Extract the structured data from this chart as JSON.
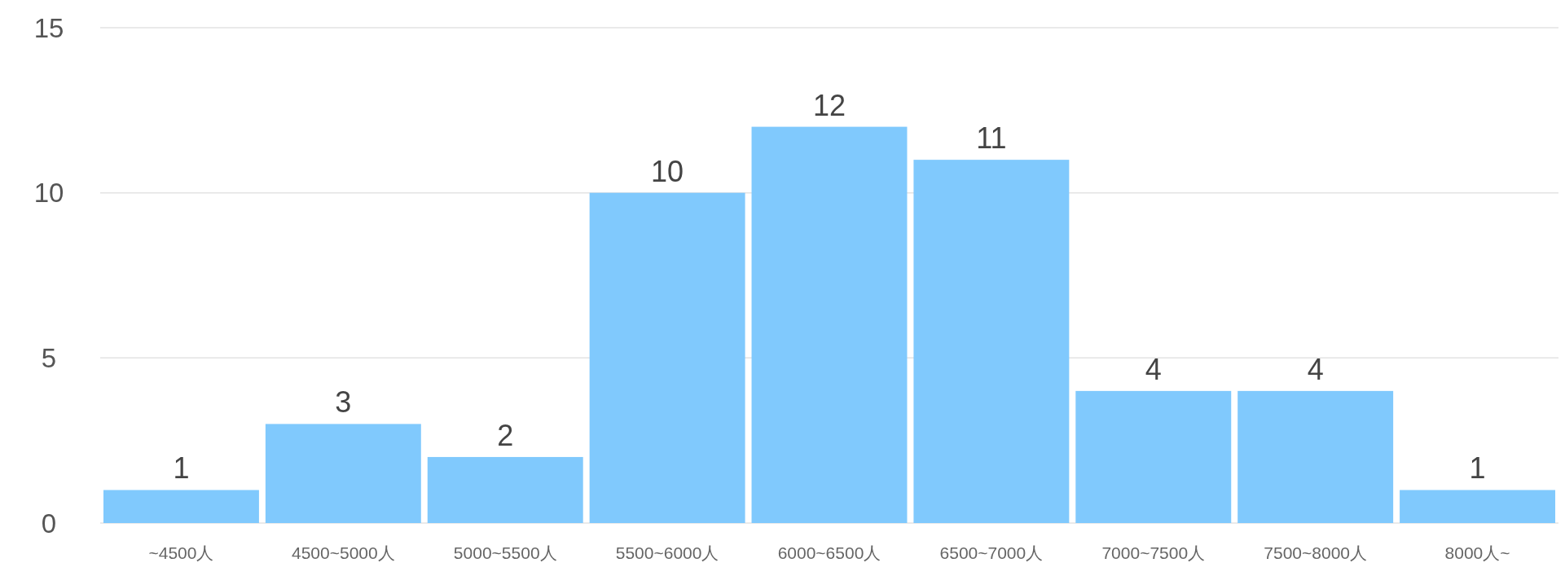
{
  "chart_data": {
    "type": "bar",
    "categories": [
      "~4500人",
      "4500~5000人",
      "5000~5500人",
      "5500~6000人",
      "6000~6500人",
      "6500~7000人",
      "7000~7500人",
      "7500~8000人",
      "8000人~"
    ],
    "values": [
      1,
      3,
      2,
      10,
      12,
      11,
      4,
      4,
      1
    ],
    "color": "#80c9fd",
    "ylim": [
      0,
      15
    ],
    "yticks": [
      0,
      5,
      10,
      15
    ],
    "grid": "y",
    "data_labels": true
  }
}
